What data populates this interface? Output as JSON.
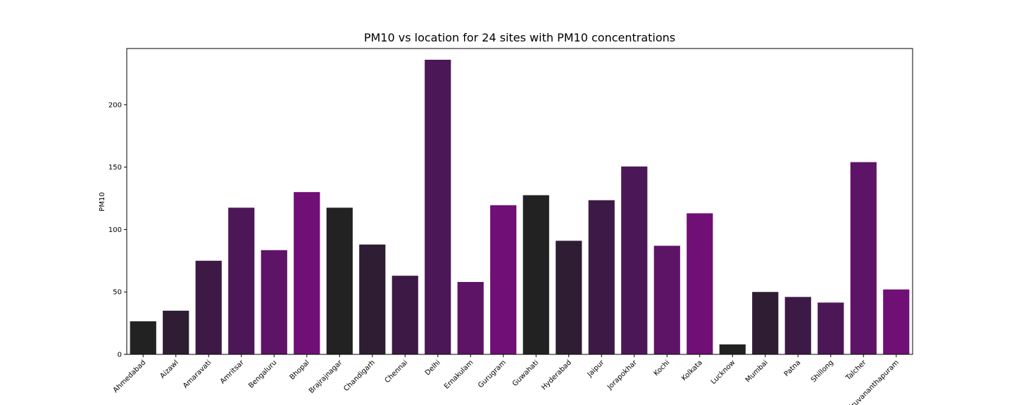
{
  "chart_data": {
    "type": "bar",
    "title": "PM10 vs location for 24 sites with PM10 concentrations",
    "xlabel": "",
    "ylabel": "PM10",
    "ylim": [
      0,
      245
    ],
    "yticks": [
      0,
      50,
      100,
      150,
      200
    ],
    "grid": false,
    "categories": [
      "Ahmedabad",
      "Aizawl",
      "Amaravati",
      "Amritsar",
      "Bengaluru",
      "Bhopal",
      "Brajrajnagar",
      "Chandigarh",
      "Chennai",
      "Delhi",
      "Ernakulam",
      "Gurugram",
      "Guwahati",
      "Hyderabad",
      "Jaipur",
      "Jorapokhar",
      "Kochi",
      "Kolkata",
      "Lucknow",
      "Mumbai",
      "Patna",
      "Shillong",
      "Talcher",
      "Thiruvananthapuram"
    ],
    "values": [
      26.5,
      35,
      75,
      117.5,
      83.5,
      130,
      117.5,
      88,
      63,
      236,
      58,
      119.5,
      127.5,
      91,
      123.5,
      150.5,
      87,
      113,
      8,
      50,
      46,
      41.5,
      154,
      52
    ],
    "colors": [
      "#222222",
      "#2e1d33",
      "#3d1a45",
      "#4c1757",
      "#5d1466",
      "#700f76",
      "#222222",
      "#2e1d33",
      "#3d1a45",
      "#4c1757",
      "#5d1466",
      "#700f76",
      "#222222",
      "#2e1d33",
      "#3d1a45",
      "#4c1757",
      "#5d1466",
      "#700f76",
      "#222222",
      "#2e1d33",
      "#3d1a45",
      "#4c1757",
      "#5d1466",
      "#700f76"
    ]
  }
}
